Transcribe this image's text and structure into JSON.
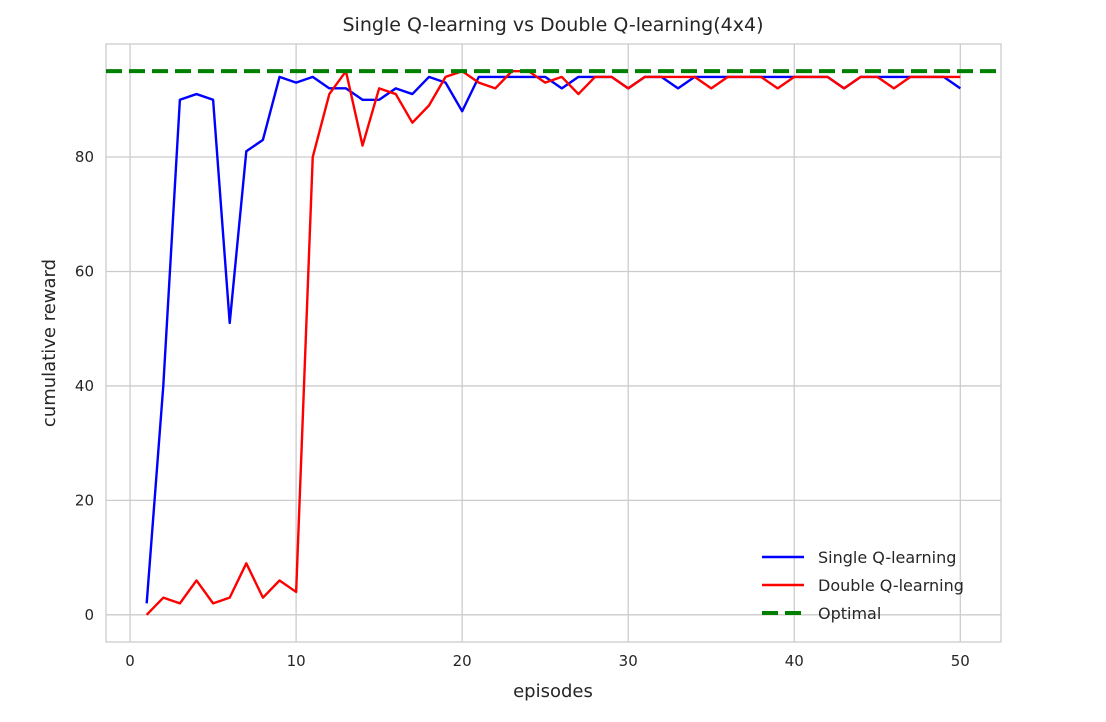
{
  "chart_data": {
    "type": "line",
    "title": "Single Q-learning vs Double Q-learning(4x4)",
    "xlabel": "episodes",
    "ylabel": "cumulative reward",
    "xlim": [
      -1.45,
      52.45
    ],
    "ylim": [
      -4.75,
      99.75
    ],
    "xticks": [
      0,
      10,
      20,
      30,
      40,
      50
    ],
    "yticks": [
      0,
      20,
      40,
      60,
      80
    ],
    "grid": true,
    "legend_position": "lower-right",
    "x": [
      1,
      2,
      3,
      4,
      5,
      6,
      7,
      8,
      9,
      10,
      11,
      12,
      13,
      14,
      15,
      16,
      17,
      18,
      19,
      20,
      21,
      22,
      23,
      24,
      25,
      26,
      27,
      28,
      29,
      30,
      31,
      32,
      33,
      34,
      35,
      36,
      37,
      38,
      39,
      40,
      41,
      42,
      43,
      44,
      45,
      46,
      47,
      48,
      49,
      50
    ],
    "series": [
      {
        "name": "Single Q-learning",
        "color": "#0000ff",
        "style": "solid",
        "values": [
          2,
          40,
          90,
          91,
          90,
          51,
          81,
          83,
          94,
          93,
          94,
          92,
          92,
          90,
          90,
          92,
          91,
          94,
          93,
          88,
          94,
          94,
          94,
          94,
          94,
          92,
          94,
          94,
          94,
          92,
          94,
          94,
          92,
          94,
          94,
          94,
          94,
          94,
          94,
          94,
          94,
          94,
          92,
          94,
          94,
          94,
          94,
          94,
          94,
          92
        ]
      },
      {
        "name": "Double Q-learning",
        "color": "#ff0000",
        "style": "solid",
        "values": [
          0,
          3,
          2,
          6,
          2,
          3,
          9,
          3,
          6,
          4,
          80,
          91,
          95,
          82,
          92,
          91,
          86,
          89,
          94,
          95,
          93,
          92,
          95,
          95,
          93,
          94,
          91,
          94,
          94,
          92,
          94,
          94,
          94,
          94,
          92,
          94,
          94,
          94,
          92,
          94,
          94,
          94,
          92,
          94,
          94,
          92,
          94,
          94,
          94,
          94
        ]
      },
      {
        "name": "Optimal",
        "color": "#008000",
        "style": "dashed",
        "constant": 95
      }
    ]
  }
}
